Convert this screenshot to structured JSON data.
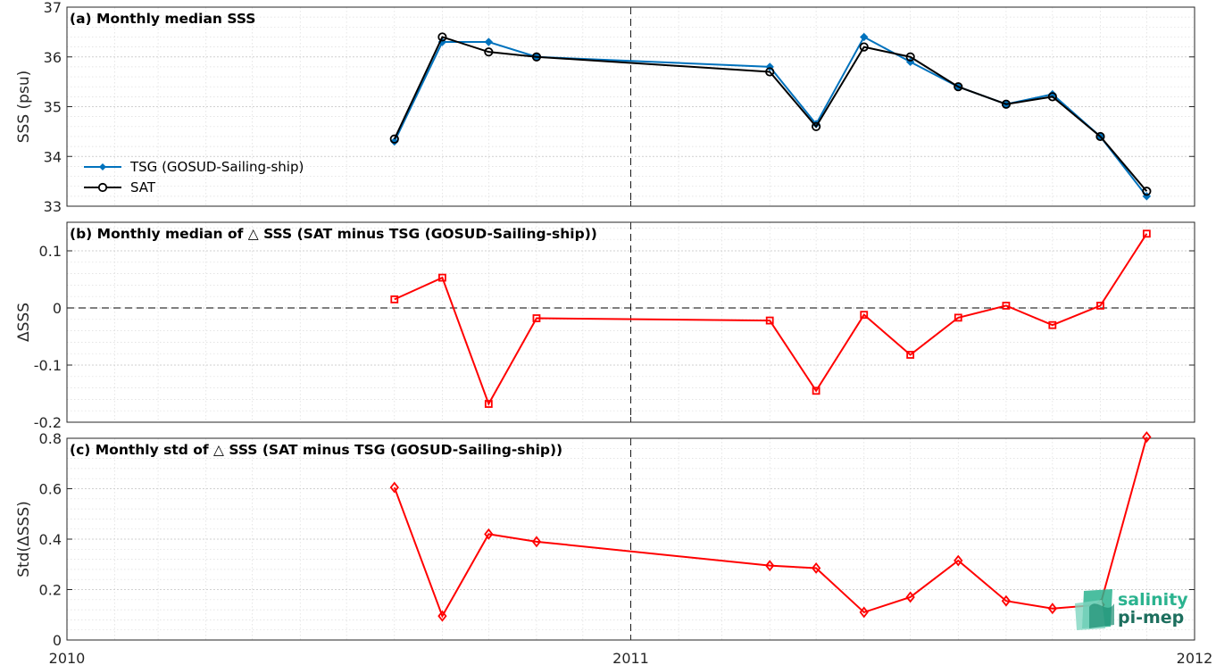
{
  "chart_data": [
    {
      "type": "line",
      "title": "(a) Monthly median SSS",
      "ylabel": "SSS (psu)",
      "xlim": [
        "2010-01-01",
        "2012-01-01"
      ],
      "ylim": [
        33,
        37
      ],
      "yticks": [
        "33",
        "34",
        "35",
        "36",
        "37"
      ],
      "xticks": [
        "2010",
        "2011",
        "2012"
      ],
      "grid": true,
      "legend_position": "left",
      "x": [
        "2010-08-01",
        "2010-09-01",
        "2010-10-01",
        "2010-11-01",
        "2011-04-01",
        "2011-05-01",
        "2011-06-01",
        "2011-07-01",
        "2011-08-01",
        "2011-09-01",
        "2011-10-01",
        "2011-11-01",
        "2011-12-01"
      ],
      "series": [
        {
          "name": "TSG (GOSUD-Sailing-ship)",
          "color": "#0072bd",
          "marker": "filled-diamond",
          "values": [
            34.3,
            36.3,
            36.3,
            36.0,
            35.8,
            34.65,
            36.4,
            35.9,
            35.4,
            35.05,
            35.25,
            34.4,
            33.2
          ]
        },
        {
          "name": "SAT",
          "color": "#000000",
          "marker": "open-circle",
          "values": [
            34.35,
            36.4,
            36.1,
            36.0,
            35.7,
            34.6,
            36.2,
            36.0,
            35.4,
            35.05,
            35.2,
            34.4,
            33.3
          ]
        }
      ]
    },
    {
      "type": "line",
      "title": "(b) Monthly median of △ SSS (SAT minus TSG (GOSUD-Sailing-ship))",
      "ylabel": "ΔSSS",
      "ylim": [
        -0.2,
        0.15
      ],
      "yticks": [
        "-0.2",
        "-0.1",
        "0",
        "0.1"
      ],
      "grid": true,
      "reference_line": 0,
      "x": [
        "2010-08-01",
        "2010-09-01",
        "2010-10-01",
        "2010-11-01",
        "2011-04-01",
        "2011-05-01",
        "2011-06-01",
        "2011-07-01",
        "2011-08-01",
        "2011-09-01",
        "2011-10-01",
        "2011-11-01",
        "2011-12-01"
      ],
      "series": [
        {
          "color": "#ff0000",
          "marker": "open-square",
          "values": [
            0.015,
            0.053,
            -0.168,
            -0.018,
            -0.022,
            -0.145,
            -0.012,
            -0.082,
            -0.017,
            0.004,
            -0.03,
            0.004,
            0.13
          ]
        }
      ]
    },
    {
      "type": "line",
      "title": "(c) Monthly std of △ SSS (SAT minus TSG (GOSUD-Sailing-ship))",
      "ylabel": "Std(ΔSSS)",
      "ylim": [
        0,
        0.8
      ],
      "yticks": [
        "0",
        "0.2",
        "0.4",
        "0.6",
        "0.8"
      ],
      "grid": true,
      "x": [
        "2010-08-01",
        "2010-09-01",
        "2010-10-01",
        "2010-11-01",
        "2011-04-01",
        "2011-05-01",
        "2011-06-01",
        "2011-07-01",
        "2011-08-01",
        "2011-09-01",
        "2011-10-01",
        "2011-11-01",
        "2011-12-01"
      ],
      "series": [
        {
          "color": "#ff0000",
          "marker": "open-diamond",
          "values": [
            0.605,
            0.095,
            0.42,
            0.39,
            0.295,
            0.285,
            0.11,
            0.17,
            0.315,
            0.155,
            0.125,
            0.14,
            0.805
          ]
        }
      ]
    }
  ],
  "colors": {
    "axis": "#262626",
    "grid": "#dcdcdc",
    "tsg": "#0072bd",
    "sat": "#000000",
    "delta": "#ff0000"
  },
  "logo": {
    "line1": "salinity",
    "line2": "pi-mep"
  }
}
